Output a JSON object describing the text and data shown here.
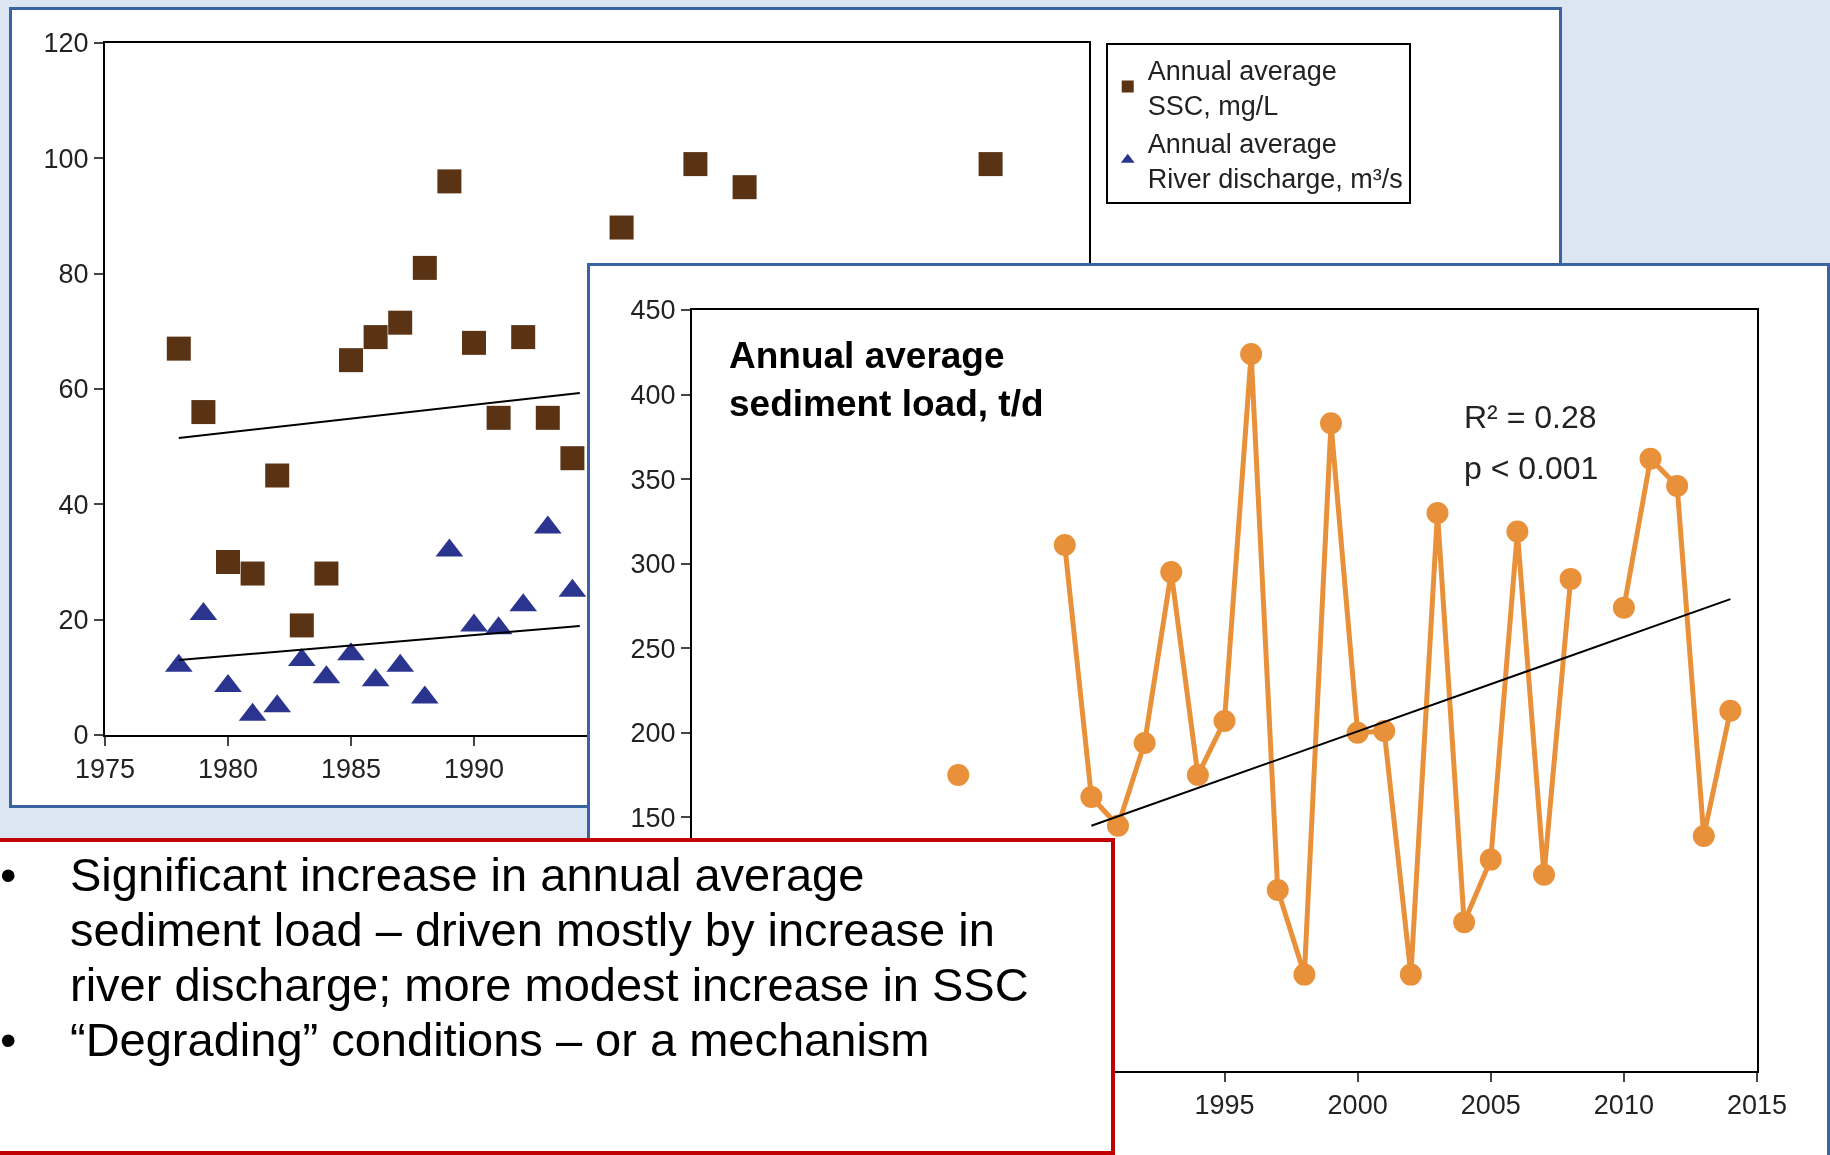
{
  "chart_data": [
    {
      "type": "scatter",
      "xlim": [
        1975,
        2015
      ],
      "xticks": [
        1975,
        1980,
        1985,
        1990
      ],
      "ylim": [
        0,
        120
      ],
      "yticks": [
        0,
        20,
        40,
        60,
        80,
        100,
        120
      ],
      "grid": false,
      "legend": "top right",
      "series": [
        {
          "name": "Annual average SSC, mg/L",
          "color": "#5a3214",
          "marker": "square",
          "x": [
            1978,
            1979,
            1980,
            1981,
            1982,
            1983,
            1984,
            1985,
            1986,
            1987,
            1988,
            1989,
            1990,
            1991,
            1992,
            1993,
            1994,
            1996,
            1999,
            2001,
            2011
          ],
          "values": [
            67,
            56,
            30,
            28,
            45,
            19,
            28,
            65,
            69,
            71.5,
            81,
            96,
            68,
            55,
            69,
            55,
            48,
            88,
            99,
            95,
            99
          ]
        },
        {
          "name": "Annual average River discharge, m³/s",
          "color": "#2b3590",
          "marker": "triangle",
          "x": [
            1978,
            1979,
            1980,
            1981,
            1982,
            1983,
            1984,
            1985,
            1986,
            1987,
            1988,
            1989,
            1990,
            1991,
            1992,
            1993,
            1994
          ],
          "values": [
            12,
            21,
            8.5,
            3.5,
            5,
            13,
            10,
            14,
            9.5,
            12,
            6.5,
            32,
            19,
            18.5,
            22.5,
            36,
            25
          ]
        },
        {
          "type": "line",
          "color": "#000000",
          "marker": "none",
          "line_style": "solid",
          "x": [
            1978,
            1994.3
          ],
          "values": [
            51.5,
            59.3
          ]
        },
        {
          "type": "line",
          "color": "#000000",
          "marker": "none",
          "line_style": "solid",
          "x": [
            1978,
            1994.3
          ],
          "values": [
            13,
            18.9
          ]
        }
      ]
    },
    {
      "type": "line",
      "title": "Annual average sediment load, t/d",
      "annotations": [
        "R² = 0.28",
        "p < 0.001"
      ],
      "xlim": [
        1975,
        2015
      ],
      "xticks": [
        1995,
        2000,
        2005,
        2010,
        2015
      ],
      "ylim": [
        0,
        450
      ],
      "yticks": [
        150,
        200,
        250,
        300,
        350,
        400,
        450
      ],
      "grid": false,
      "series": [
        {
          "color": "#e8913a",
          "marker": "circle",
          "line_style": "solid",
          "x": [
            1985,
            1986,
            1987,
            1988,
            1989,
            1990,
            1991,
            1992,
            1993,
            1994,
            1995,
            1996,
            1997,
            1998,
            1999,
            2000,
            2001,
            2002,
            2003,
            2004,
            2005,
            2006,
            2007,
            2008,
            2009,
            2010,
            2011,
            2012,
            2013,
            2014
          ],
          "values": [
            175,
            null,
            null,
            null,
            311,
            162,
            145,
            194,
            295,
            175,
            207,
            424,
            107,
            57,
            383,
            200,
            201,
            57,
            330,
            88,
            125,
            319,
            116,
            291,
            null,
            274,
            362,
            346,
            139,
            213
          ]
        },
        {
          "color": "#000000",
          "marker": "none",
          "line_style": "solid",
          "x": [
            1990,
            2014
          ],
          "values": [
            145,
            279
          ]
        }
      ]
    },
    {
      "type": "other",
      "annotations": [
        "•\tSignificant increase in annual average sediment load – driven mostly by increase in river discharge; more modest increase in SSC",
        "•\t“Degrading” conditions – or a mechanism"
      ]
    }
  ]
}
